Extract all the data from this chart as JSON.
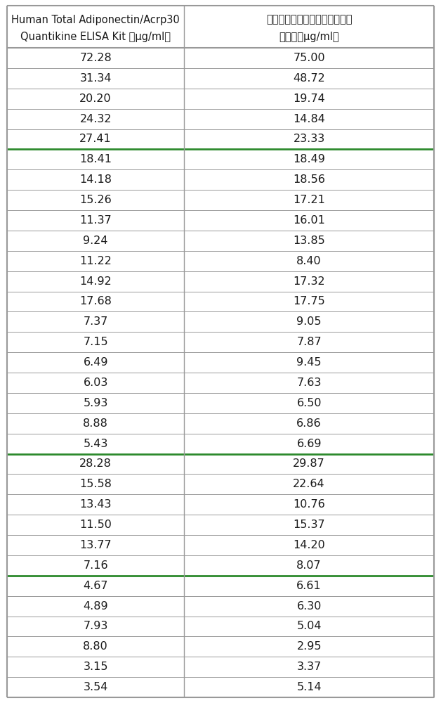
{
  "col1_header_line1": "Human Total Adiponectin/Acrp30",
  "col1_header_line2": "Quantikine ELISA Kit （μg/ml）",
  "col2_header_line1": "脂联素微粒子化学发光免疫检测",
  "col2_header_line2": "试剂盒（μg/ml）",
  "col1_values": [
    72.28,
    31.34,
    20.2,
    24.32,
    27.41,
    18.41,
    14.18,
    15.26,
    11.37,
    9.24,
    11.22,
    14.92,
    17.68,
    7.37,
    7.15,
    6.49,
    6.03,
    5.93,
    8.88,
    5.43,
    28.28,
    15.58,
    13.43,
    11.5,
    13.77,
    7.16,
    4.67,
    4.89,
    7.93,
    8.8,
    3.15,
    3.54
  ],
  "col2_values": [
    75.0,
    48.72,
    19.74,
    14.84,
    23.33,
    18.49,
    18.56,
    17.21,
    16.01,
    13.85,
    8.4,
    17.32,
    17.75,
    9.05,
    7.87,
    9.45,
    7.63,
    6.5,
    6.86,
    6.69,
    29.87,
    22.64,
    10.76,
    15.37,
    14.2,
    8.07,
    6.61,
    6.3,
    5.04,
    2.95,
    3.37,
    5.14
  ],
  "thick_line_after_rows": [
    4,
    19,
    25
  ],
  "background_color": "#ffffff",
  "text_color": "#1a1a1a",
  "border_color": "#999999",
  "thick_border_color": "#2d8a2d",
  "header_font_size": 10.5,
  "cell_font_size": 11.5,
  "fig_width": 6.28,
  "fig_height": 10.0,
  "dpi": 100
}
